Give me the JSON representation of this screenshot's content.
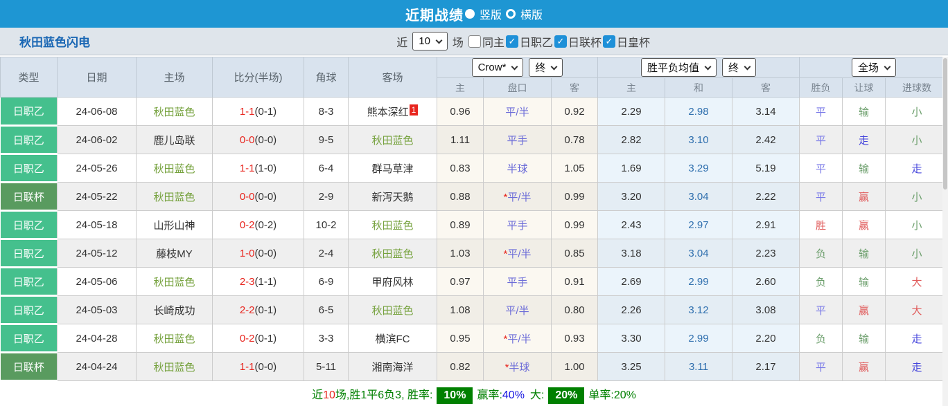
{
  "colors": {
    "topbar": "#1E96D3",
    "team_title_blue": "#1A67B4",
    "type_j2_green": "#45C08D",
    "type_cup_green": "#599B5F",
    "team_name_green": "#76A23E",
    "score_red": "#E8251E",
    "handicap_violet": "#6C6CD8",
    "avg_draw_blue": "#2F6FAE",
    "status_win_red": "#E05A5A",
    "status_lose_green": "#6B9E6B",
    "status_draw_blue": "#7A7AE8",
    "status_push_blue": "#4646DC",
    "footer_green": "#008000",
    "footer_blue": "#1515E0",
    "checkbox_blue": "#1E90D8"
  },
  "topbar": {
    "title": "近期战绩",
    "options": [
      {
        "label": "竖版",
        "selected": true
      },
      {
        "label": "横版",
        "selected": false
      }
    ]
  },
  "filter": {
    "team": "秋田蓝色闪电",
    "near_label": "近",
    "near_value": "10",
    "games_label": "场",
    "checkboxes": [
      {
        "label": "同主",
        "checked": false
      },
      {
        "label": "日职乙",
        "checked": true
      },
      {
        "label": "日联杯",
        "checked": true
      },
      {
        "label": "日皇杯",
        "checked": true
      }
    ]
  },
  "table": {
    "headers": {
      "type": "类型",
      "date": "日期",
      "home": "主场",
      "score": "比分(半场)",
      "corners": "角球",
      "away": "客场"
    },
    "groups": [
      {
        "selects": [
          "Crow*",
          "终"
        ],
        "subs": [
          "主",
          "盘口",
          "客"
        ]
      },
      {
        "selects": [
          "胜平负均值",
          "终"
        ],
        "subs": [
          "主",
          "和",
          "客"
        ]
      },
      {
        "selects": [
          "全场"
        ],
        "subs": [
          "胜负",
          "让球",
          "进球数"
        ]
      }
    ],
    "rows": [
      {
        "type": "日职乙",
        "comp": "j2",
        "date": "24-06-08",
        "home": "秋田蓝色",
        "home_is_team": true,
        "score_ft": "1-1",
        "score_ht": "(0-1)",
        "corners": "8-3",
        "away": "熊本深红",
        "away_is_team": false,
        "away_badge": "1",
        "odds_home": "0.96",
        "handicap": "平/半",
        "handicap_star": false,
        "odds_away": "0.92",
        "avg_home": "2.29",
        "avg_draw": "2.98",
        "avg_away": "3.14",
        "result": "平",
        "result_status": "draw",
        "spread": "输",
        "spread_status": "lose",
        "goals": "小",
        "goals_status": "small"
      },
      {
        "type": "日职乙",
        "comp": "j2",
        "date": "24-06-02",
        "home": "鹿儿岛联",
        "home_is_team": false,
        "score_ft": "0-0",
        "score_ht": "(0-0)",
        "corners": "9-5",
        "away": "秋田蓝色",
        "away_is_team": true,
        "away_badge": null,
        "odds_home": "1.11",
        "handicap": "平手",
        "handicap_star": false,
        "odds_away": "0.78",
        "avg_home": "2.82",
        "avg_draw": "3.10",
        "avg_away": "2.42",
        "result": "平",
        "result_status": "draw",
        "spread": "走",
        "spread_status": "push",
        "goals": "小",
        "goals_status": "small"
      },
      {
        "type": "日职乙",
        "comp": "j2",
        "date": "24-05-26",
        "home": "秋田蓝色",
        "home_is_team": true,
        "score_ft": "1-1",
        "score_ht": "(1-0)",
        "corners": "6-4",
        "away": "群马草津",
        "away_is_team": false,
        "away_badge": null,
        "odds_home": "0.83",
        "handicap": "半球",
        "handicap_star": false,
        "odds_away": "1.05",
        "avg_home": "1.69",
        "avg_draw": "3.29",
        "avg_away": "5.19",
        "result": "平",
        "result_status": "draw",
        "spread": "输",
        "spread_status": "lose",
        "goals": "走",
        "goals_status": "push"
      },
      {
        "type": "日联杯",
        "comp": "cup",
        "date": "24-05-22",
        "home": "秋田蓝色",
        "home_is_team": true,
        "score_ft": "0-0",
        "score_ht": "(0-0)",
        "corners": "2-9",
        "away": "新泻天鹅",
        "away_is_team": false,
        "away_badge": null,
        "odds_home": "0.88",
        "handicap": "平/半",
        "handicap_star": true,
        "odds_away": "0.99",
        "avg_home": "3.20",
        "avg_draw": "3.04",
        "avg_away": "2.22",
        "result": "平",
        "result_status": "draw",
        "spread": "赢",
        "spread_status": "win",
        "goals": "小",
        "goals_status": "small"
      },
      {
        "type": "日职乙",
        "comp": "j2",
        "date": "24-05-18",
        "home": "山形山神",
        "home_is_team": false,
        "score_ft": "0-2",
        "score_ht": "(0-2)",
        "corners": "10-2",
        "away": "秋田蓝色",
        "away_is_team": true,
        "away_badge": null,
        "odds_home": "0.89",
        "handicap": "平手",
        "handicap_star": false,
        "odds_away": "0.99",
        "avg_home": "2.43",
        "avg_draw": "2.97",
        "avg_away": "2.91",
        "result": "胜",
        "result_status": "win",
        "spread": "赢",
        "spread_status": "win",
        "goals": "小",
        "goals_status": "small"
      },
      {
        "type": "日职乙",
        "comp": "j2",
        "date": "24-05-12",
        "home": "藤枝MY",
        "home_is_team": false,
        "score_ft": "1-0",
        "score_ht": "(0-0)",
        "corners": "2-4",
        "away": "秋田蓝色",
        "away_is_team": true,
        "away_badge": null,
        "odds_home": "1.03",
        "handicap": "平/半",
        "handicap_star": true,
        "odds_away": "0.85",
        "avg_home": "3.18",
        "avg_draw": "3.04",
        "avg_away": "2.23",
        "result": "负",
        "result_status": "lose",
        "spread": "输",
        "spread_status": "lose",
        "goals": "小",
        "goals_status": "small"
      },
      {
        "type": "日职乙",
        "comp": "j2",
        "date": "24-05-06",
        "home": "秋田蓝色",
        "home_is_team": true,
        "score_ft": "2-3",
        "score_ht": "(1-1)",
        "corners": "6-9",
        "away": "甲府风林",
        "away_is_team": false,
        "away_badge": null,
        "odds_home": "0.97",
        "handicap": "平手",
        "handicap_star": false,
        "odds_away": "0.91",
        "avg_home": "2.69",
        "avg_draw": "2.99",
        "avg_away": "2.60",
        "result": "负",
        "result_status": "lose",
        "spread": "输",
        "spread_status": "lose",
        "goals": "大",
        "goals_status": "big"
      },
      {
        "type": "日职乙",
        "comp": "j2",
        "date": "24-05-03",
        "home": "长崎成功",
        "home_is_team": false,
        "score_ft": "2-2",
        "score_ht": "(0-1)",
        "corners": "6-5",
        "away": "秋田蓝色",
        "away_is_team": true,
        "away_badge": null,
        "odds_home": "1.08",
        "handicap": "平/半",
        "handicap_star": false,
        "odds_away": "0.80",
        "avg_home": "2.26",
        "avg_draw": "3.12",
        "avg_away": "3.08",
        "result": "平",
        "result_status": "draw",
        "spread": "赢",
        "spread_status": "win",
        "goals": "大",
        "goals_status": "big"
      },
      {
        "type": "日职乙",
        "comp": "j2",
        "date": "24-04-28",
        "home": "秋田蓝色",
        "home_is_team": true,
        "score_ft": "0-2",
        "score_ht": "(0-1)",
        "corners": "3-3",
        "away": "横滨FC",
        "away_is_team": false,
        "away_badge": null,
        "odds_home": "0.95",
        "handicap": "平/半",
        "handicap_star": true,
        "odds_away": "0.93",
        "avg_home": "3.30",
        "avg_draw": "2.99",
        "avg_away": "2.20",
        "result": "负",
        "result_status": "lose",
        "spread": "输",
        "spread_status": "lose",
        "goals": "走",
        "goals_status": "push"
      },
      {
        "type": "日联杯",
        "comp": "cup",
        "date": "24-04-24",
        "home": "秋田蓝色",
        "home_is_team": true,
        "score_ft": "1-1",
        "score_ht": "(0-0)",
        "corners": "5-11",
        "away": "湘南海洋",
        "away_is_team": false,
        "away_badge": null,
        "odds_home": "0.82",
        "handicap": "半球",
        "handicap_star": true,
        "odds_away": "1.00",
        "avg_home": "3.25",
        "avg_draw": "3.11",
        "avg_away": "2.17",
        "result": "平",
        "result_status": "draw",
        "spread": "赢",
        "spread_status": "win",
        "goals": "走",
        "goals_status": "push"
      }
    ]
  },
  "footer": {
    "near": "近",
    "count": "10",
    "summary": "场,胜1平6负3, 胜率:",
    "win_rate": "10%",
    "win_label": "赢率:",
    "win_pct": "40%",
    "big_label": "大:",
    "big_rate": "20%",
    "single_label": "单率:",
    "single_pct": "20%"
  }
}
